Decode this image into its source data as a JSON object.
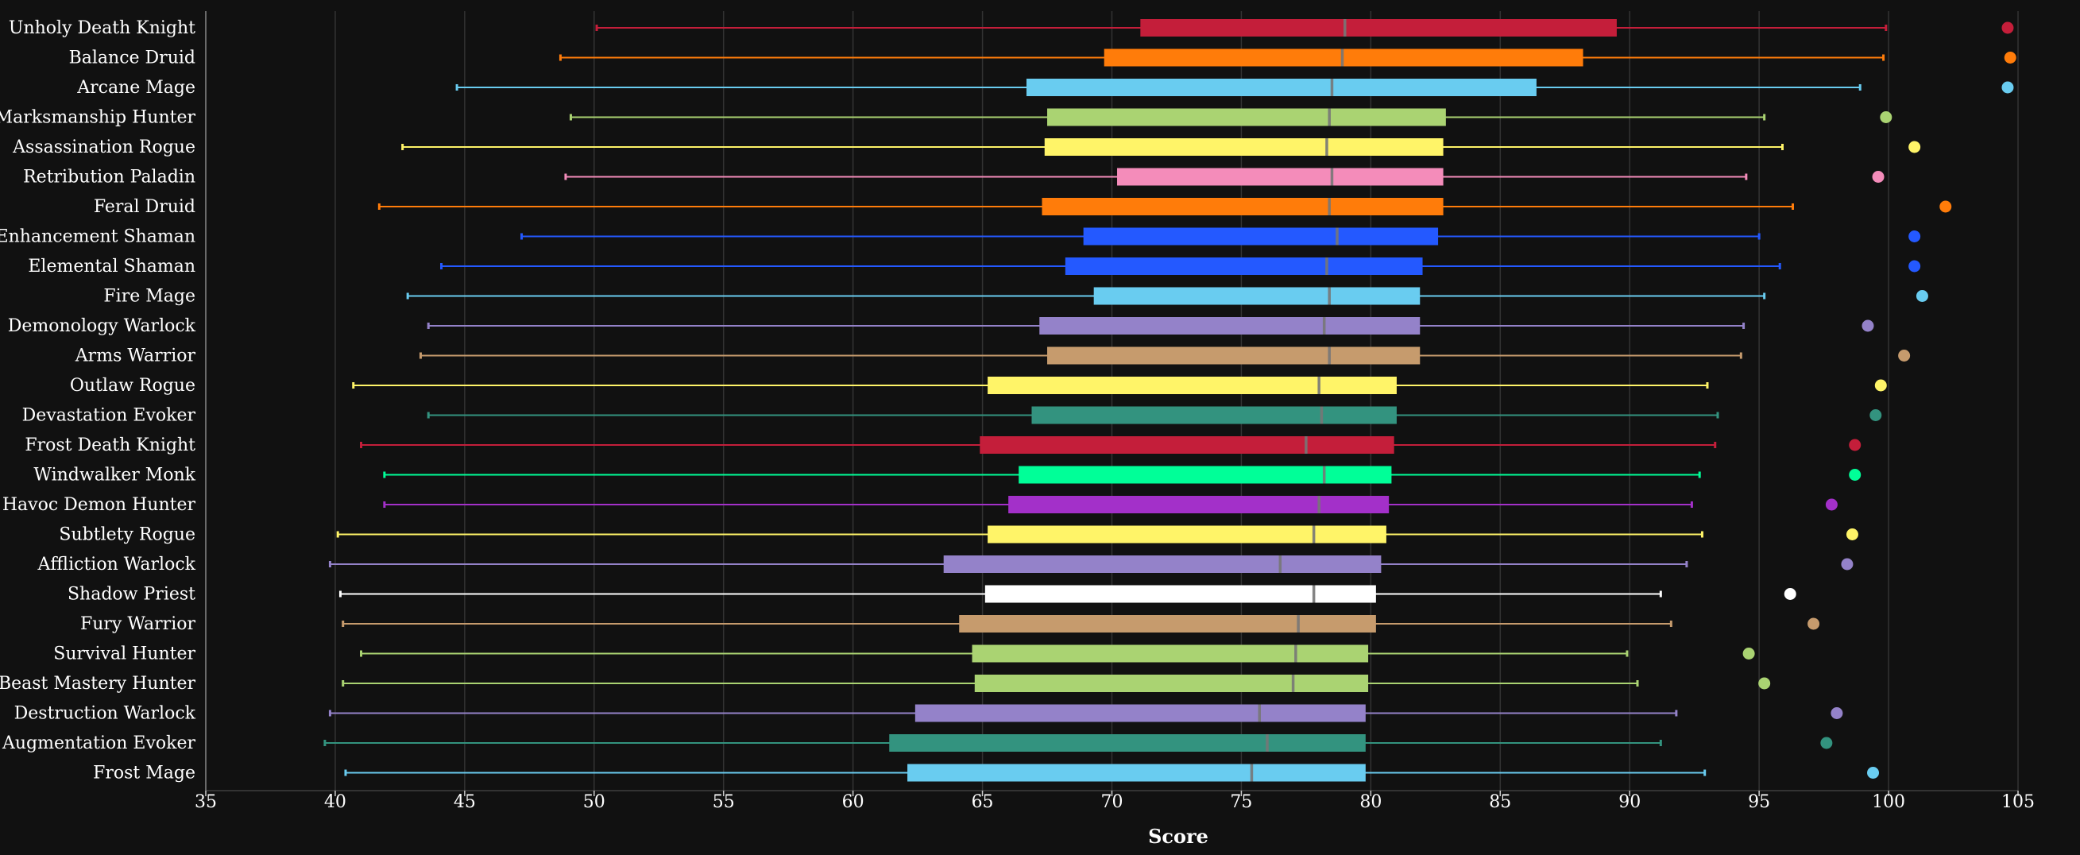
{
  "chart_data": {
    "type": "box",
    "xlabel": "Score",
    "xlim": [
      35,
      105
    ],
    "xticks": [
      35,
      40,
      45,
      50,
      55,
      60,
      65,
      70,
      75,
      80,
      85,
      90,
      95,
      100,
      105
    ],
    "grid": "vertical",
    "series": [
      {
        "name": "Unholy Death Knight",
        "color": "#C41E3A",
        "min": 50.1,
        "q1": 71.1,
        "median": 79.0,
        "q3": 89.5,
        "max": 99.9,
        "outlier": 104.6
      },
      {
        "name": "Balance Druid",
        "color": "#FF7C0A",
        "min": 48.7,
        "q1": 69.7,
        "median": 78.9,
        "q3": 88.2,
        "max": 99.8,
        "outlier": 104.7
      },
      {
        "name": "Arcane Mage",
        "color": "#69CCF0",
        "min": 44.7,
        "q1": 66.7,
        "median": 78.5,
        "q3": 86.4,
        "max": 98.9,
        "outlier": 104.6
      },
      {
        "name": "Marksmanship Hunter",
        "color": "#AAD372",
        "min": 49.1,
        "q1": 67.5,
        "median": 78.4,
        "q3": 82.9,
        "max": 95.2,
        "outlier": 99.9
      },
      {
        "name": "Assassination Rogue",
        "color": "#FFF468",
        "min": 42.6,
        "q1": 67.4,
        "median": 78.3,
        "q3": 82.8,
        "max": 95.9,
        "outlier": 101.0
      },
      {
        "name": "Retribution Paladin",
        "color": "#F48CBA",
        "min": 48.9,
        "q1": 70.2,
        "median": 78.5,
        "q3": 82.8,
        "max": 94.5,
        "outlier": 99.6
      },
      {
        "name": "Feral Druid",
        "color": "#FF7C0A",
        "min": 41.7,
        "q1": 67.3,
        "median": 78.4,
        "q3": 82.8,
        "max": 96.3,
        "outlier": 102.2
      },
      {
        "name": "Enhancement Shaman",
        "color": "#2459FF",
        "min": 47.2,
        "q1": 68.9,
        "median": 78.7,
        "q3": 82.6,
        "max": 95.0,
        "outlier": 101.0
      },
      {
        "name": "Elemental Shaman",
        "color": "#2459FF",
        "min": 44.1,
        "q1": 68.2,
        "median": 78.3,
        "q3": 82.0,
        "max": 95.8,
        "outlier": 101.0
      },
      {
        "name": "Fire Mage",
        "color": "#69CCF0",
        "min": 42.8,
        "q1": 69.3,
        "median": 78.4,
        "q3": 81.9,
        "max": 95.2,
        "outlier": 101.3
      },
      {
        "name": "Demonology Warlock",
        "color": "#9482C9",
        "min": 43.6,
        "q1": 67.2,
        "median": 78.2,
        "q3": 81.9,
        "max": 94.4,
        "outlier": 99.2
      },
      {
        "name": "Arms Warrior",
        "color": "#C69B6D",
        "min": 43.3,
        "q1": 67.5,
        "median": 78.4,
        "q3": 81.9,
        "max": 94.3,
        "outlier": 100.6
      },
      {
        "name": "Outlaw Rogue",
        "color": "#FFF468",
        "min": 40.7,
        "q1": 65.2,
        "median": 78.0,
        "q3": 81.0,
        "max": 93.0,
        "outlier": 99.7
      },
      {
        "name": "Devastation Evoker",
        "color": "#33937F",
        "min": 43.6,
        "q1": 66.9,
        "median": 78.1,
        "q3": 81.0,
        "max": 93.4,
        "outlier": 99.5
      },
      {
        "name": "Frost Death Knight",
        "color": "#C41E3A",
        "min": 41.0,
        "q1": 64.9,
        "median": 77.5,
        "q3": 80.9,
        "max": 93.3,
        "outlier": 98.7
      },
      {
        "name": "Windwalker Monk",
        "color": "#00FF98",
        "min": 41.9,
        "q1": 66.4,
        "median": 78.2,
        "q3": 80.8,
        "max": 92.7,
        "outlier": 98.7
      },
      {
        "name": "Havoc Demon Hunter",
        "color": "#A330C9",
        "min": 41.9,
        "q1": 66.0,
        "median": 78.0,
        "q3": 80.7,
        "max": 92.4,
        "outlier": 97.8
      },
      {
        "name": "Subtlety Rogue",
        "color": "#FFF468",
        "min": 40.1,
        "q1": 65.2,
        "median": 77.8,
        "q3": 80.6,
        "max": 92.8,
        "outlier": 98.6
      },
      {
        "name": "Affliction Warlock",
        "color": "#9482C9",
        "min": 39.8,
        "q1": 63.5,
        "median": 76.5,
        "q3": 80.4,
        "max": 92.2,
        "outlier": 98.4
      },
      {
        "name": "Shadow Priest",
        "color": "#FFFFFF",
        "min": 40.2,
        "q1": 65.1,
        "median": 77.8,
        "q3": 80.2,
        "max": 91.2,
        "outlier": 96.2
      },
      {
        "name": "Fury Warrior",
        "color": "#C69B6D",
        "min": 40.3,
        "q1": 64.1,
        "median": 77.2,
        "q3": 80.2,
        "max": 91.6,
        "outlier": 97.1
      },
      {
        "name": "Survival Hunter",
        "color": "#AAD372",
        "min": 41.0,
        "q1": 64.6,
        "median": 77.1,
        "q3": 79.9,
        "max": 89.9,
        "outlier": 94.6
      },
      {
        "name": "Beast Mastery Hunter",
        "color": "#AAD372",
        "min": 40.3,
        "q1": 64.7,
        "median": 77.0,
        "q3": 79.9,
        "max": 90.3,
        "outlier": 95.2
      },
      {
        "name": "Destruction Warlock",
        "color": "#9482C9",
        "min": 39.8,
        "q1": 62.4,
        "median": 75.7,
        "q3": 79.8,
        "max": 91.8,
        "outlier": 98.0
      },
      {
        "name": "Augmentation Evoker",
        "color": "#33937F",
        "min": 39.6,
        "q1": 61.4,
        "median": 76.0,
        "q3": 79.8,
        "max": 91.2,
        "outlier": 97.6
      },
      {
        "name": "Frost Mage",
        "color": "#69CCF0",
        "min": 40.4,
        "q1": 62.1,
        "median": 75.4,
        "q3": 79.8,
        "max": 92.9,
        "outlier": 99.4
      }
    ]
  }
}
